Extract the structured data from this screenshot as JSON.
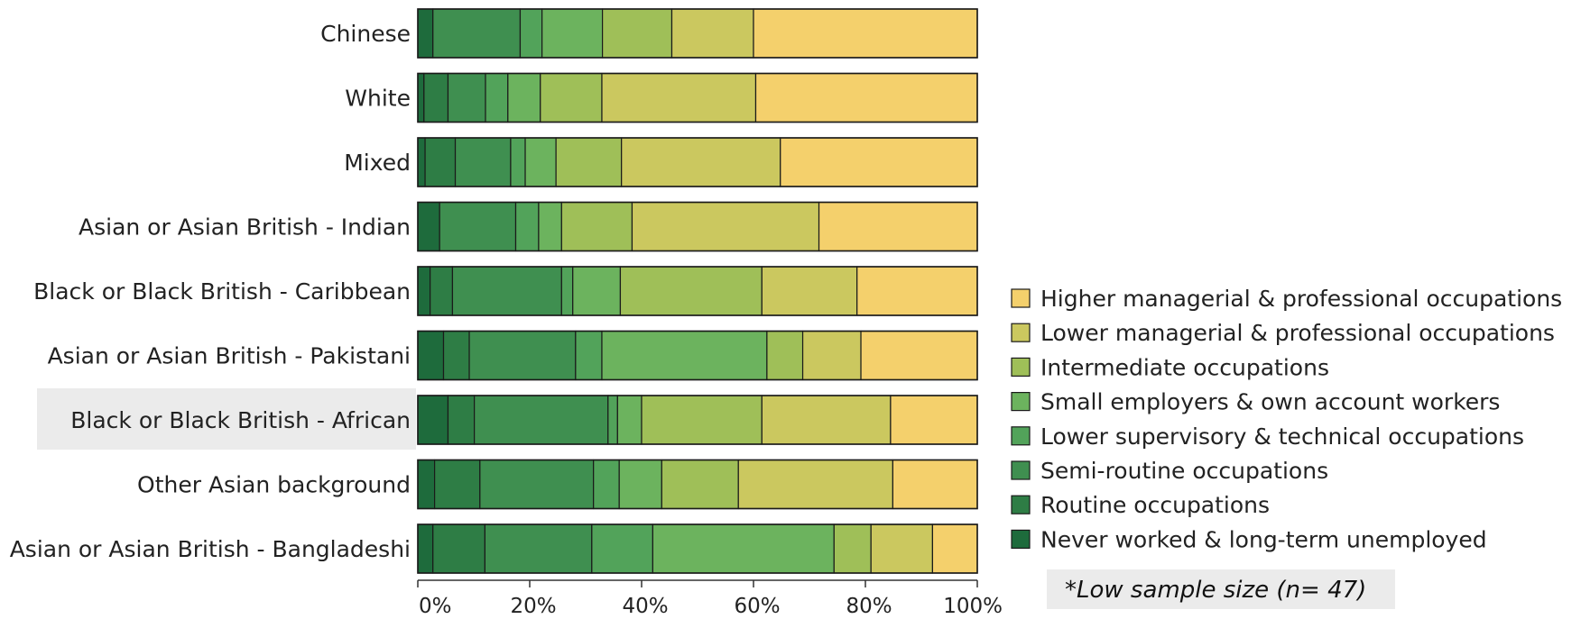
{
  "chart_data": {
    "type": "bar",
    "orientation": "horizontal",
    "stacked": true,
    "percent": true,
    "categories": [
      "Chinese",
      "White",
      "Mixed",
      "Asian or Asian British - Indian",
      "Black or Black British - Caribbean",
      "Asian or Asian British - Pakistani",
      "Black or Black British - African",
      "Other Asian background",
      "Asian or Asian British - Bangladeshi"
    ],
    "highlighted_category": "Black or Black British - African",
    "series": [
      {
        "name": "Never worked & long-term unemployed",
        "color": "#1e6b3c",
        "values": [
          2.7,
          1.1,
          1.3,
          3.9,
          2.2,
          4.6,
          5.4,
          3.0,
          2.7
        ]
      },
      {
        "name": "Routine occupations",
        "color": "#2e7d45",
        "values": [
          0.0,
          4.3,
          5.4,
          0.0,
          4.0,
          4.6,
          4.7,
          8.1,
          9.3
        ]
      },
      {
        "name": "Semi-routine occupations",
        "color": "#3f8f50",
        "values": [
          15.6,
          6.7,
          9.9,
          13.6,
          19.5,
          19.0,
          23.9,
          20.3,
          19.1
        ]
      },
      {
        "name": "Lower supervisory & technical occupations",
        "color": "#52a35a",
        "values": [
          3.9,
          4.0,
          2.6,
          4.1,
          2.0,
          4.7,
          1.7,
          4.6,
          10.9
        ]
      },
      {
        "name": "Small employers & own account workers",
        "color": "#6cb35e",
        "values": [
          10.8,
          5.8,
          5.5,
          4.1,
          8.5,
          29.5,
          4.3,
          7.6,
          32.4
        ]
      },
      {
        "name": "Intermediate occupations",
        "color": "#9fbf58",
        "values": [
          12.4,
          11.0,
          11.7,
          12.6,
          25.3,
          6.4,
          21.5,
          13.7,
          6.6
        ]
      },
      {
        "name": "Lower managerial & professional occupations",
        "color": "#cbc85f",
        "values": [
          14.6,
          27.5,
          28.4,
          33.4,
          17.0,
          10.4,
          23.0,
          27.6,
          11.0
        ]
      },
      {
        "name": "Higher managerial & professional occupations",
        "color": "#f4d06c",
        "values": [
          40.0,
          39.6,
          35.2,
          28.3,
          21.5,
          20.8,
          15.5,
          15.1,
          8.0
        ]
      }
    ],
    "xlim": [
      0,
      100
    ],
    "xticks": [
      "0%",
      "20%",
      "40%",
      "60%",
      "80%",
      "100%"
    ],
    "legend_position": "right",
    "legend_order": "reverse",
    "note": "*Low sample size (n= 47)"
  }
}
